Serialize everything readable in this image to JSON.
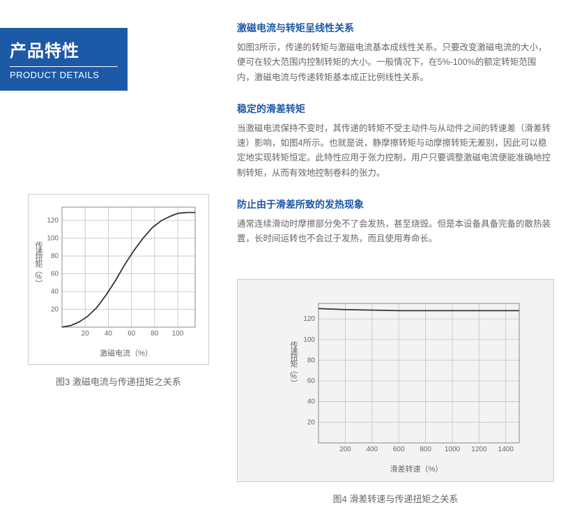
{
  "badge": {
    "title_cn": "产品特性",
    "title_en": "PRODUCT DETAILS"
  },
  "sections": [
    {
      "heading": "激磁电流与转矩呈线性关系",
      "body": "如图3所示，传递的转矩与激磁电流基本成线性关系。只要改变激磁电流的大小，便可在较大范围内控制转矩的大小。一般情况下，在5%-100%的额定转矩范围内，激磁电流与传递转矩基本成正比例线性关系。"
    },
    {
      "heading": "稳定的滑差转矩",
      "body": "当激磁电流保持不变时，其传递的转矩不受主动件与从动件之间的转速差（滑差转速）影响，如图4所示。也就是说，静摩擦转矩与动摩擦转矩无差别，因此可以稳定地实现转矩恒定。此特性应用于张力控制，用户只要调整激磁电流便能准确地控制转矩，从而有效地控制卷料的张力。"
    },
    {
      "heading": "防止由于滑差所致的发热现象",
      "body": "通常连续滑动时摩擦部分免不了会发热，甚至烧毁。但是本设备具备完备的散热装置，长时间运转也不会过于发热，而且使用寿命长。"
    }
  ],
  "fig3": {
    "caption": "图3 激磁电流与传递扭矩之关系",
    "x_label": "激磁电流（%）",
    "y_label": "传递扭矩（%）",
    "x_ticks": [
      20,
      40,
      60,
      80,
      100
    ],
    "y_ticks": [
      20,
      40,
      60,
      80,
      100,
      120
    ],
    "xlim": [
      0,
      115
    ],
    "ylim": [
      0,
      135
    ],
    "curve_color": "#333333",
    "grid_color": "#c8c8c8",
    "curve_points": [
      [
        0,
        0
      ],
      [
        8,
        2
      ],
      [
        15,
        6
      ],
      [
        22,
        12
      ],
      [
        30,
        22
      ],
      [
        38,
        36
      ],
      [
        46,
        52
      ],
      [
        54,
        70
      ],
      [
        62,
        86
      ],
      [
        70,
        100
      ],
      [
        78,
        112
      ],
      [
        86,
        120
      ],
      [
        94,
        125
      ],
      [
        100,
        128
      ],
      [
        108,
        129
      ],
      [
        115,
        129
      ]
    ]
  },
  "fig4": {
    "caption": "图4 滑差转速与传递扭矩之关系",
    "x_label": "滑差转速（%）",
    "y_label": "传递扭矩（%）",
    "x_ticks": [
      200,
      400,
      600,
      800,
      1000,
      1200,
      1400
    ],
    "y_ticks": [
      20,
      40,
      60,
      80,
      100,
      120
    ],
    "xlim": [
      0,
      1500
    ],
    "ylim": [
      0,
      135
    ],
    "curve_color": "#333333",
    "grid_color": "#c8c8c8",
    "curve_points": [
      [
        0,
        130
      ],
      [
        200,
        129
      ],
      [
        600,
        128
      ],
      [
        1000,
        128
      ],
      [
        1400,
        128
      ],
      [
        1500,
        128
      ]
    ]
  }
}
